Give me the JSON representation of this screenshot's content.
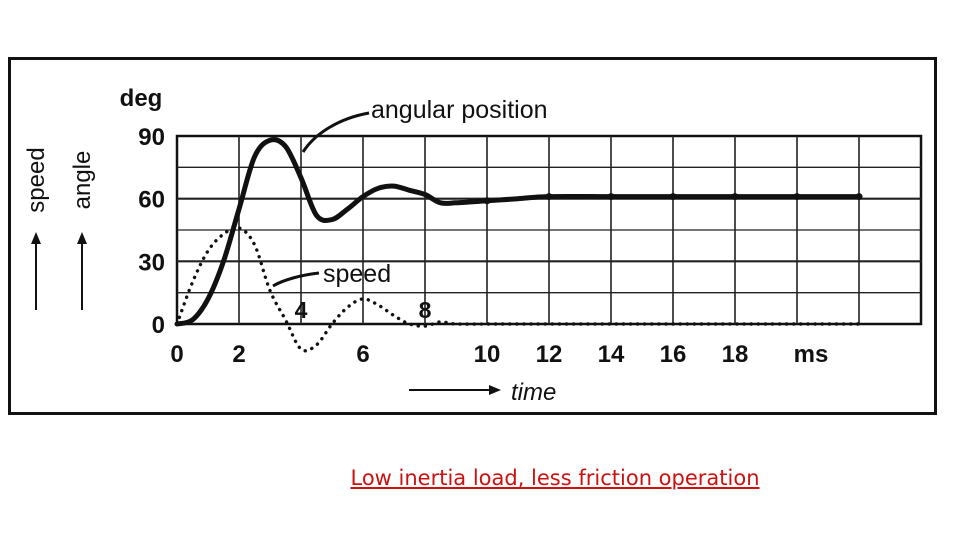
{
  "caption": "Low inertia load, less friction operation",
  "colors": {
    "ink": "#111111",
    "caption": "#cc1111",
    "background": "#ffffff"
  },
  "chart_data": {
    "type": "line",
    "title": "",
    "x_unit": "ms",
    "y_unit": "deg",
    "xlabel": "time",
    "ylabels": [
      "speed",
      "angle"
    ],
    "xlim": [
      0,
      24
    ],
    "ylim": [
      0,
      90
    ],
    "grid": true,
    "x_ticks": [
      0,
      2,
      6,
      10,
      12,
      14,
      16,
      18
    ],
    "x_tick_labels": [
      "0",
      "2",
      "6",
      "10",
      "12",
      "14",
      "16",
      "18"
    ],
    "x_inline_ticks": [
      4,
      8
    ],
    "x_inline_tick_labels": [
      "4",
      "8"
    ],
    "y_ticks": [
      0,
      30,
      60,
      90
    ],
    "y_tick_labels": [
      "0",
      "30",
      "60",
      "90"
    ],
    "annotations": [
      "angular position",
      "speed"
    ],
    "series": [
      {
        "name": "angular position",
        "style": "solid",
        "x": [
          0,
          0.5,
          1,
          1.5,
          2,
          2.5,
          3,
          3.5,
          4,
          4.5,
          5,
          5.5,
          6,
          6.5,
          7,
          7.5,
          8,
          8.5,
          9,
          10,
          11,
          12,
          14,
          16,
          18,
          20,
          22
        ],
        "values": [
          0,
          2,
          12,
          30,
          55,
          80,
          88,
          85,
          70,
          52,
          50,
          55,
          61,
          65,
          66,
          64,
          62,
          58,
          58,
          59,
          60,
          61,
          61,
          61,
          61,
          61,
          61
        ]
      },
      {
        "name": "speed",
        "style": "dotted",
        "x": [
          0,
          0.5,
          1,
          1.5,
          2,
          2.5,
          3,
          3.5,
          4,
          4.5,
          5,
          5.5,
          6,
          6.5,
          7,
          7.5,
          8,
          8.5,
          9,
          10,
          11,
          12,
          14,
          16,
          18,
          20,
          22
        ],
        "values": [
          0,
          20,
          35,
          43,
          46,
          38,
          16,
          2,
          -12,
          -10,
          0,
          8,
          12,
          9,
          4,
          0,
          -1,
          1,
          0,
          0,
          0,
          0,
          0,
          0,
          0,
          0,
          0
        ]
      }
    ]
  }
}
